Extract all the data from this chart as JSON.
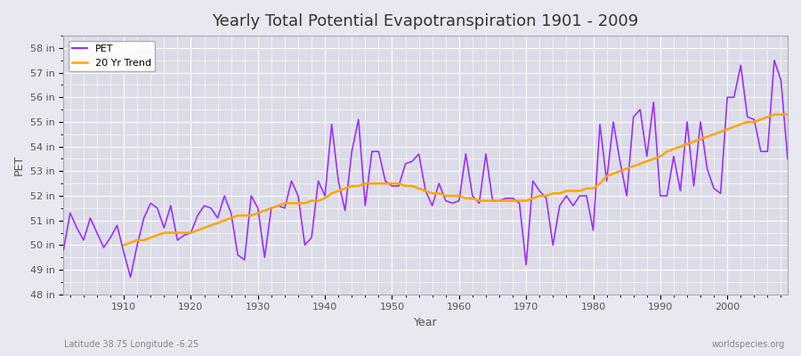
{
  "title": "Yearly Total Potential Evapotranspiration 1901 - 2009",
  "xlabel": "Year",
  "ylabel": "PET",
  "subtitle_left": "Latitude 38.75 Longitude -6.25",
  "subtitle_right": "worldspecies.org",
  "pet_color": "#9B30FF",
  "trend_color": "#FFA500",
  "bg_color": "#E8E8F0",
  "plot_bg": "#DCDCE8",
  "ylim": [
    48,
    58.5
  ],
  "yticks": [
    48,
    49,
    50,
    51,
    52,
    53,
    54,
    55,
    56,
    57,
    58
  ],
  "ytick_labels": [
    "48 in",
    "49 in",
    "50 in",
    "51 in",
    "52 in",
    "53 in",
    "54 in",
    "55 in",
    "56 in",
    "57 in",
    "58 in"
  ],
  "years": [
    1901,
    1902,
    1903,
    1904,
    1905,
    1906,
    1907,
    1908,
    1909,
    1910,
    1911,
    1912,
    1913,
    1914,
    1915,
    1916,
    1917,
    1918,
    1919,
    1920,
    1921,
    1922,
    1923,
    1924,
    1925,
    1926,
    1927,
    1928,
    1929,
    1930,
    1931,
    1932,
    1933,
    1934,
    1935,
    1936,
    1937,
    1938,
    1939,
    1940,
    1941,
    1942,
    1943,
    1944,
    1945,
    1946,
    1947,
    1948,
    1949,
    1950,
    1951,
    1952,
    1953,
    1954,
    1955,
    1956,
    1957,
    1958,
    1959,
    1960,
    1961,
    1962,
    1963,
    1964,
    1965,
    1966,
    1967,
    1968,
    1969,
    1970,
    1971,
    1972,
    1973,
    1974,
    1975,
    1976,
    1977,
    1978,
    1979,
    1980,
    1981,
    1982,
    1983,
    1984,
    1985,
    1986,
    1987,
    1988,
    1989,
    1990,
    1991,
    1992,
    1993,
    1994,
    1995,
    1996,
    1997,
    1998,
    1999,
    2000,
    2001,
    2002,
    2003,
    2004,
    2005,
    2006,
    2007,
    2008,
    2009
  ],
  "pet": [
    49.8,
    51.3,
    50.7,
    50.2,
    51.1,
    50.5,
    49.9,
    50.3,
    50.8,
    49.7,
    48.7,
    50.0,
    51.1,
    51.7,
    51.5,
    50.7,
    51.6,
    50.2,
    50.4,
    50.5,
    51.2,
    51.6,
    51.5,
    51.1,
    52.0,
    51.3,
    49.6,
    49.4,
    52.0,
    51.5,
    49.5,
    51.5,
    51.6,
    51.5,
    52.6,
    52.0,
    50.0,
    50.3,
    52.6,
    52.0,
    54.9,
    52.6,
    51.4,
    53.8,
    55.1,
    51.6,
    53.8,
    53.8,
    52.6,
    52.4,
    52.4,
    53.3,
    53.4,
    53.7,
    52.2,
    51.6,
    52.5,
    51.8,
    51.7,
    51.8,
    53.7,
    52.0,
    51.7,
    53.7,
    51.8,
    51.8,
    51.9,
    51.9,
    51.7,
    49.2,
    52.6,
    52.2,
    51.9,
    50.0,
    51.6,
    52.0,
    51.6,
    52.0,
    52.0,
    50.6,
    54.9,
    52.6,
    55.0,
    53.4,
    52.0,
    55.2,
    55.5,
    53.6,
    55.8,
    52.0,
    52.0,
    53.6,
    52.2,
    55.0,
    52.4,
    55.0,
    53.1,
    52.3,
    52.1,
    56.0,
    56.0,
    57.3,
    55.2,
    55.1,
    53.8,
    53.8,
    57.5,
    56.7,
    53.5
  ],
  "trend_years": [
    1910,
    1911,
    1912,
    1913,
    1914,
    1915,
    1916,
    1917,
    1918,
    1919,
    1920,
    1921,
    1922,
    1923,
    1924,
    1925,
    1926,
    1927,
    1928,
    1929,
    1930,
    1931,
    1932,
    1933,
    1934,
    1935,
    1936,
    1937,
    1938,
    1939,
    1940,
    1941,
    1942,
    1943,
    1944,
    1945,
    1946,
    1947,
    1948,
    1949,
    1950,
    1951,
    1952,
    1953,
    1954,
    1955,
    1956,
    1957,
    1958,
    1959,
    1960,
    1961,
    1962,
    1963,
    1964,
    1965,
    1966,
    1967,
    1968,
    1969,
    1970,
    1971,
    1972,
    1973,
    1974,
    1975,
    1976,
    1977,
    1978,
    1979,
    1980,
    1981,
    1982,
    1983,
    1984,
    1985,
    1986,
    1987,
    1988,
    1989,
    1990,
    1991,
    1992,
    1993,
    1994,
    1995,
    1996,
    1997,
    1998,
    1999,
    2000,
    2001,
    2002,
    2003,
    2004,
    2005,
    2006,
    2007,
    2008,
    2009
  ],
  "trend": [
    50.0,
    50.1,
    50.2,
    50.2,
    50.3,
    50.4,
    50.5,
    50.5,
    50.5,
    50.5,
    50.5,
    50.6,
    50.7,
    50.8,
    50.9,
    51.0,
    51.1,
    51.2,
    51.2,
    51.2,
    51.3,
    51.4,
    51.5,
    51.6,
    51.7,
    51.7,
    51.7,
    51.7,
    51.8,
    51.8,
    51.9,
    52.1,
    52.2,
    52.3,
    52.4,
    52.4,
    52.5,
    52.5,
    52.5,
    52.5,
    52.5,
    52.5,
    52.4,
    52.4,
    52.3,
    52.2,
    52.1,
    52.1,
    52.0,
    52.0,
    52.0,
    51.9,
    51.9,
    51.8,
    51.8,
    51.8,
    51.8,
    51.8,
    51.8,
    51.8,
    51.8,
    51.9,
    52.0,
    52.0,
    52.1,
    52.1,
    52.2,
    52.2,
    52.2,
    52.3,
    52.3,
    52.5,
    52.8,
    52.9,
    53.0,
    53.1,
    53.2,
    53.3,
    53.4,
    53.5,
    53.6,
    53.8,
    53.9,
    54.0,
    54.1,
    54.2,
    54.3,
    54.4,
    54.5,
    54.6,
    54.7,
    54.8,
    54.9,
    55.0,
    55.0,
    55.1,
    55.2,
    55.3,
    55.3,
    55.3
  ]
}
